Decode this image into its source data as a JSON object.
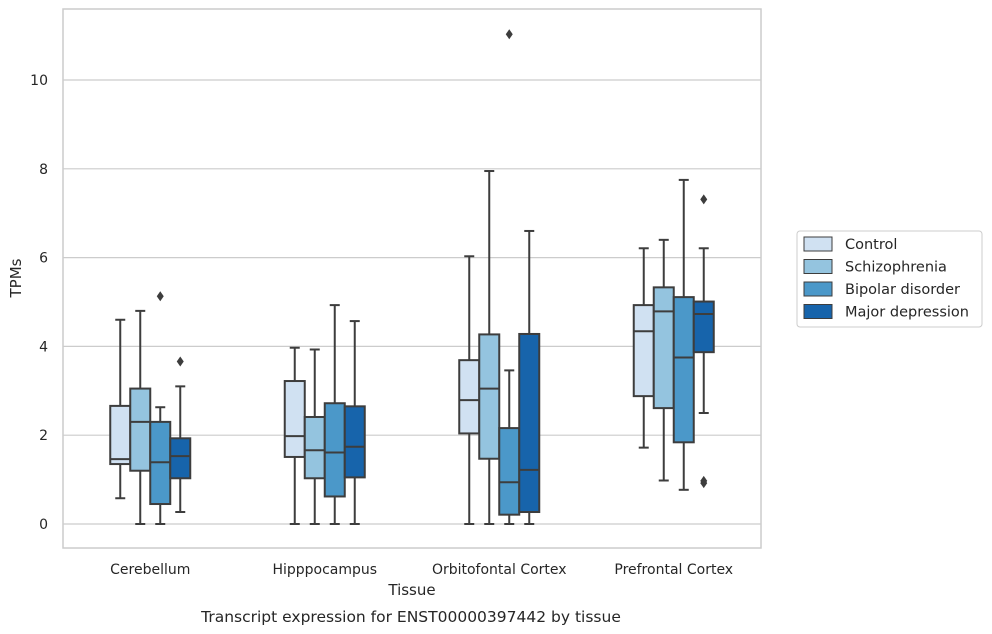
{
  "caption": "Transcript expression for ENST00000397442 by tissue",
  "chart_data": {
    "type": "box",
    "xlabel": "Tissue",
    "ylabel": "TPMs",
    "ylim": [
      -0.5,
      11.6
    ],
    "yticks": [
      0,
      2,
      4,
      6,
      8,
      10
    ],
    "grid": "horizontal",
    "legend_position": "right",
    "categories": [
      "Cerebellum",
      "Hipppocampus",
      "Orbitofontal Cortex",
      "Prefrontal Cortex"
    ],
    "series": [
      {
        "name": "Control",
        "color": "#d0e1f2",
        "boxes": [
          {
            "whislo": 0.58,
            "q1": 1.35,
            "med": 1.46,
            "q3": 2.66,
            "whishi": 4.6,
            "fliers": []
          },
          {
            "whislo": 0.0,
            "q1": 1.51,
            "med": 1.98,
            "q3": 3.22,
            "whishi": 3.97,
            "fliers": []
          },
          {
            "whislo": 0.0,
            "q1": 2.04,
            "med": 2.79,
            "q3": 3.69,
            "whishi": 6.03,
            "fliers": []
          },
          {
            "whislo": 1.72,
            "q1": 2.88,
            "med": 4.34,
            "q3": 4.93,
            "whishi": 6.21,
            "fliers": []
          }
        ]
      },
      {
        "name": "Schizophrenia",
        "color": "#94c4df",
        "boxes": [
          {
            "whislo": 0.0,
            "q1": 1.2,
            "med": 2.3,
            "q3": 3.05,
            "whishi": 4.8,
            "fliers": []
          },
          {
            "whislo": 0.0,
            "q1": 1.03,
            "med": 1.66,
            "q3": 2.41,
            "whishi": 3.93,
            "fliers": []
          },
          {
            "whislo": 0.0,
            "q1": 1.47,
            "med": 3.05,
            "q3": 4.27,
            "whishi": 7.95,
            "fliers": []
          },
          {
            "whislo": 0.98,
            "q1": 2.61,
            "med": 4.79,
            "q3": 5.33,
            "whishi": 6.4,
            "fliers": []
          }
        ]
      },
      {
        "name": "Bipolar disorder",
        "color": "#4b98c9",
        "boxes": [
          {
            "whislo": 0.0,
            "q1": 0.45,
            "med": 1.39,
            "q3": 2.3,
            "whishi": 2.63,
            "fliers": [
              5.13
            ]
          },
          {
            "whislo": 0.0,
            "q1": 0.62,
            "med": 1.61,
            "q3": 2.72,
            "whishi": 4.93,
            "fliers": []
          },
          {
            "whislo": 0.0,
            "q1": 0.21,
            "med": 0.94,
            "q3": 2.16,
            "whishi": 3.46,
            "fliers": [
              11.03
            ]
          },
          {
            "whislo": 0.77,
            "q1": 1.84,
            "med": 3.75,
            "q3": 5.11,
            "whishi": 7.75,
            "fliers": []
          }
        ]
      },
      {
        "name": "Major depression",
        "color": "#1764ab",
        "boxes": [
          {
            "whislo": 0.27,
            "q1": 1.03,
            "med": 1.53,
            "q3": 1.93,
            "whishi": 3.1,
            "fliers": [
              3.66
            ]
          },
          {
            "whislo": 0.0,
            "q1": 1.05,
            "med": 1.74,
            "q3": 2.65,
            "whishi": 4.57,
            "fliers": []
          },
          {
            "whislo": 0.0,
            "q1": 0.27,
            "med": 1.22,
            "q3": 4.28,
            "whishi": 6.6,
            "fliers": []
          },
          {
            "whislo": 2.5,
            "q1": 3.87,
            "med": 4.73,
            "q3": 5.01,
            "whishi": 6.21,
            "fliers": [
              7.31,
              0.92,
              0.97
            ]
          }
        ]
      }
    ]
  }
}
